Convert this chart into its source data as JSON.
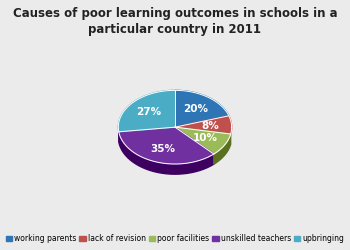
{
  "title": "Causes of poor learning outcomes in schools in a\nparticular country in 2011",
  "slices": [
    20,
    8,
    10,
    35,
    27
  ],
  "labels": [
    "20%",
    "8%",
    "10%",
    "35%",
    "27%"
  ],
  "colors": [
    "#2E75B6",
    "#C0504D",
    "#9BBB59",
    "#7030A0",
    "#4BACC6"
  ],
  "dark_colors": [
    "#1a4a7a",
    "#8b2020",
    "#5a7020",
    "#3d0060",
    "#1a6080"
  ],
  "legend_labels": [
    "working parents",
    "lack of revision",
    "poor facilities",
    "unskilled teachers",
    "upbringing"
  ],
  "startangle": 90,
  "background_color": "#EBEBEB",
  "title_fontsize": 8.5,
  "label_fontsize": 7.5,
  "legend_fontsize": 5.5
}
